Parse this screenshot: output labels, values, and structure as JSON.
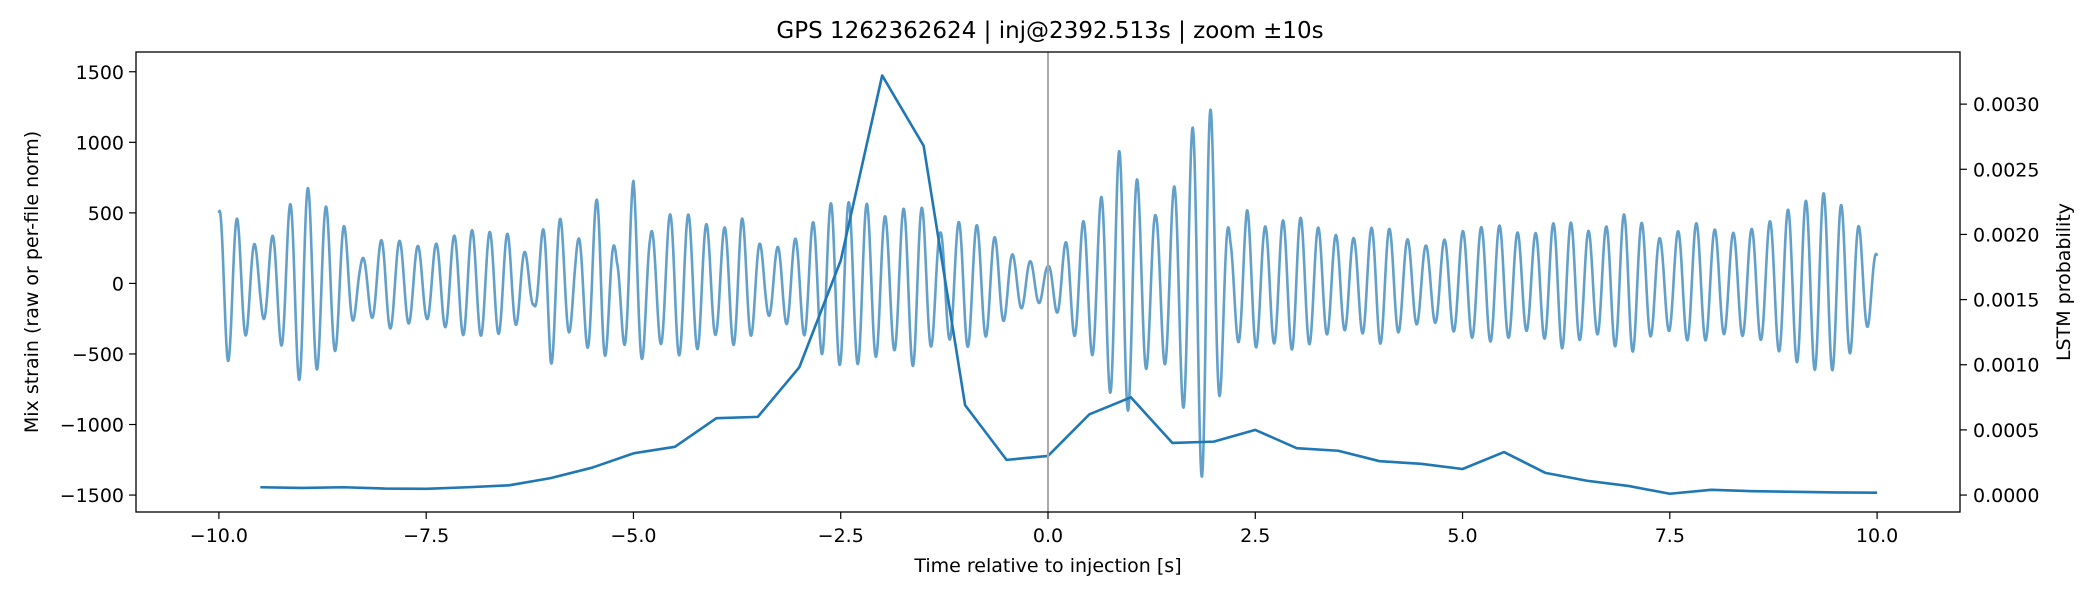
{
  "chart_data": {
    "type": "line",
    "title": "GPS 1262362624 | inj@2392.513s | zoom ±10s",
    "xlabel": "Time relative to injection [s]",
    "ylabel_left": "Mix strain (raw or per-file norm)",
    "ylabel_right": "LSTM probability",
    "xlim": [
      -11,
      11
    ],
    "ylim_left": [
      -1620,
      1640
    ],
    "ylim_right": [
      -0.00013,
      0.0034
    ],
    "x_ticks": [
      -10.0,
      -7.5,
      -5.0,
      -2.5,
      0.0,
      2.5,
      5.0,
      7.5,
      10.0
    ],
    "x_tick_labels": [
      "−10.0",
      "−7.5",
      "−5.0",
      "−2.5",
      "0.0",
      "2.5",
      "5.0",
      "7.5",
      "10.0"
    ],
    "y_left_ticks": [
      1500,
      1000,
      500,
      0,
      -500,
      -1000,
      -1500
    ],
    "y_left_tick_labels": [
      "1500",
      "1000",
      "500",
      "0",
      "−500",
      "−1000",
      "−1500"
    ],
    "y_right_ticks": [
      0.003,
      0.0025,
      0.002,
      0.0015,
      0.001,
      0.0005,
      0.0
    ],
    "y_right_tick_labels": [
      "0.0030",
      "0.0025",
      "0.0020",
      "0.0015",
      "0.0010",
      "0.0005",
      "0.0000"
    ],
    "injection_marker_x": 0.0,
    "series": [
      {
        "name": "Mix strain",
        "axis": "left",
        "color": "#1f77b4",
        "opacity": 0.7,
        "description": "oscillating strain time series, approx. 4.6 cycles per second",
        "freq_hz": 4.6,
        "envelope": {
          "x": [
            -10.0,
            -9.9,
            -9.5,
            -9.3,
            -9.0,
            -8.5,
            -8.3,
            -8.0,
            -7.5,
            -7.0,
            -6.5,
            -6.2,
            -6.0,
            -5.7,
            -5.4,
            -5.2,
            -5.0,
            -4.8,
            -4.5,
            -4.2,
            -4.0,
            -3.7,
            -3.4,
            -3.0,
            -2.6,
            -2.2,
            -1.9,
            -1.6,
            -1.3,
            -1.0,
            -0.7,
            -0.4,
            0.0,
            0.3,
            0.6,
            0.9,
            1.1,
            1.3,
            1.5,
            1.7,
            1.9,
            2.05,
            2.2,
            2.4,
            2.6,
            3.0,
            3.4,
            3.7,
            4.0,
            4.3,
            4.6,
            5.0,
            5.4,
            5.8,
            6.2,
            6.6,
            7.0,
            7.4,
            7.8,
            8.2,
            8.6,
            9.0,
            9.4,
            9.7,
            10.0
          ],
          "amplitude": [
            510,
            560,
            220,
            380,
            720,
            420,
            160,
            330,
            250,
            380,
            350,
            150,
            580,
            270,
            650,
            200,
            730,
            360,
            520,
            460,
            360,
            470,
            220,
            330,
            580,
            570,
            450,
            600,
            360,
            460,
            360,
            190,
            120,
            360,
            550,
            1000,
            700,
            480,
            650,
            1000,
            1480,
            880,
            320,
            520,
            400,
            480,
            350,
            320,
            430,
            320,
            260,
            370,
            420,
            330,
            460,
            350,
            510,
            310,
            430,
            350,
            400,
            550,
            650,
            480,
            200
          ]
        }
      },
      {
        "name": "LSTM probability",
        "axis": "right",
        "color": "#1f77b4",
        "opacity": 1.0,
        "x": [
          -9.5,
          -9.0,
          -8.5,
          -8.0,
          -7.5,
          -7.0,
          -6.5,
          -6.0,
          -5.5,
          -5.0,
          -4.5,
          -4.0,
          -3.5,
          -3.0,
          -2.5,
          -2.0,
          -1.5,
          -1.0,
          -0.5,
          0.0,
          0.5,
          1.0,
          1.5,
          2.0,
          2.5,
          3.0,
          3.5,
          4.0,
          4.5,
          5.0,
          5.5,
          6.0,
          6.5,
          7.0,
          7.5,
          8.0,
          8.5,
          9.0,
          9.5,
          10.0
        ],
        "values": [
          6e-05,
          5.5e-05,
          6e-05,
          5e-05,
          4.8e-05,
          6e-05,
          7.5e-05,
          0.00013,
          0.00021,
          0.00032,
          0.00037,
          0.00059,
          0.0006,
          0.00098,
          0.0018,
          0.00322,
          0.00268,
          0.00069,
          0.00027,
          0.0003,
          0.00062,
          0.00075,
          0.0004,
          0.00041,
          0.0005,
          0.00036,
          0.00034,
          0.00026,
          0.00024,
          0.0002,
          0.00033,
          0.00017,
          0.00011,
          7e-05,
          1e-05,
          4e-05,
          3e-05,
          2.5e-05,
          2e-05,
          1.8e-05
        ]
      }
    ]
  }
}
